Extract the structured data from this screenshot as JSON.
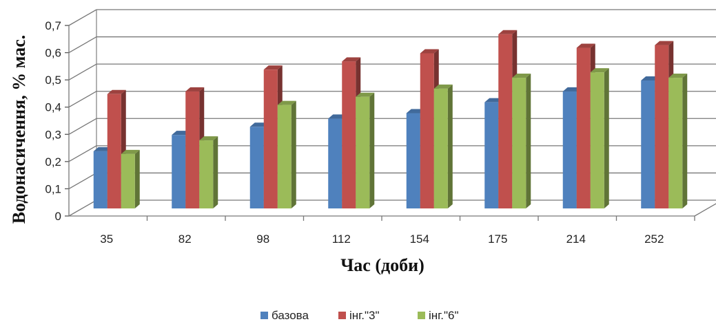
{
  "chart_data": {
    "type": "bar",
    "xlabel": "Час (доби)",
    "ylabel": "Водонасичення, % мас.",
    "categories": [
      "35",
      "82",
      "98",
      "112",
      "154",
      "175",
      "214",
      "252"
    ],
    "ylim": [
      0,
      0.7
    ],
    "yticks": [
      "0",
      "0,1",
      "0,2",
      "0,3",
      "0,4",
      "0,5",
      "0,6",
      "0,7"
    ],
    "grid": true,
    "legend_position": "bottom",
    "series": [
      {
        "name": "базова",
        "color": "#4f81bd",
        "values": [
          0.21,
          0.27,
          0.3,
          0.33,
          0.35,
          0.39,
          0.43,
          0.47
        ]
      },
      {
        "name": "інг.\"3\"",
        "color": "#c0504d",
        "values": [
          0.42,
          0.43,
          0.51,
          0.54,
          0.57,
          0.64,
          0.59,
          0.6
        ]
      },
      {
        "name": "інг.\"6\"",
        "color": "#9bbb59",
        "values": [
          0.2,
          0.25,
          0.38,
          0.41,
          0.44,
          0.48,
          0.5,
          0.48
        ]
      }
    ]
  }
}
